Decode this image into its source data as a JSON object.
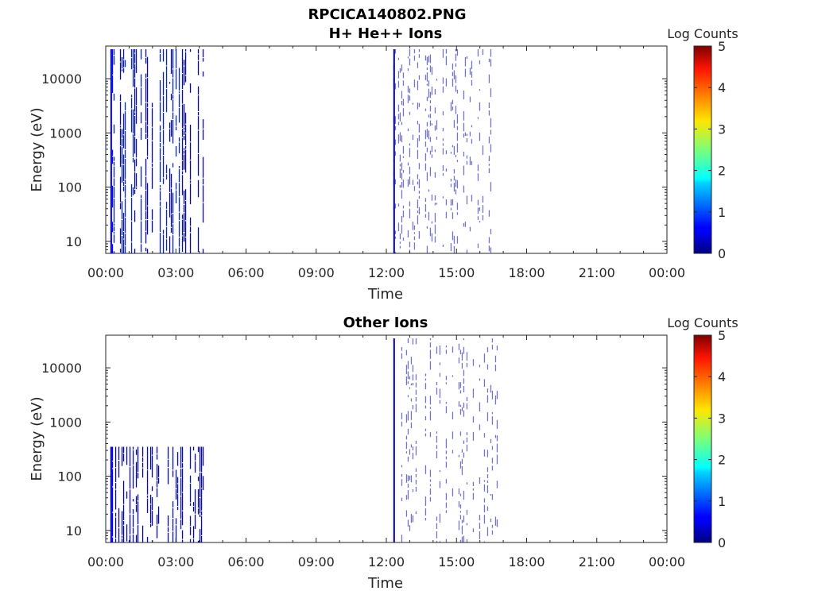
{
  "figure": {
    "title": "RPCICA140802.PNG"
  },
  "chart_data": [
    {
      "type": "heatmap",
      "id": "top",
      "title": "H+ He++ Ions",
      "xlabel": "Time",
      "ylabel": "Energy (eV)",
      "x_ticks": [
        "00:00",
        "03:00",
        "06:00",
        "09:00",
        "12:00",
        "15:00",
        "18:00",
        "21:00",
        "00:00"
      ],
      "xlim_hours": [
        0,
        24
      ],
      "y_scale": "log",
      "y_ticks": [
        10,
        100,
        1000,
        10000
      ],
      "y_tick_labels": [
        "10",
        "100",
        "1000",
        "10000"
      ],
      "ylim": [
        6,
        40000
      ],
      "colorbar": {
        "label": "Log Counts",
        "ticks": [
          "0",
          "1",
          "2",
          "3",
          "4",
          "5"
        ],
        "range": [
          0,
          5
        ],
        "colormap": "jet"
      },
      "data_segments": [
        {
          "start_hour": 0.2,
          "end_hour": 4.3,
          "log_counts": 0.6,
          "energy_max_ev": 35000,
          "energy_min_ev": 6,
          "description_level": "dense"
        },
        {
          "start_hour": 12.3,
          "end_hour": 16.8,
          "log_counts": 0.15,
          "energy_max_ev": 35000,
          "energy_min_ev": 6,
          "description_level": "sparse"
        }
      ]
    },
    {
      "type": "heatmap",
      "id": "bottom",
      "title": "Other Ions",
      "xlabel": "Time",
      "ylabel": "Energy (eV)",
      "x_ticks": [
        "00:00",
        "03:00",
        "06:00",
        "09:00",
        "12:00",
        "15:00",
        "18:00",
        "21:00",
        "00:00"
      ],
      "xlim_hours": [
        0,
        24
      ],
      "y_scale": "log",
      "y_ticks": [
        10,
        100,
        1000,
        10000
      ],
      "y_tick_labels": [
        "10",
        "100",
        "1000",
        "10000"
      ],
      "ylim": [
        6,
        40000
      ],
      "colorbar": {
        "label": "Log Counts",
        "ticks": [
          "0",
          "1",
          "2",
          "3",
          "4",
          "5"
        ],
        "range": [
          0,
          5
        ],
        "colormap": "jet"
      },
      "data_segments": [
        {
          "start_hour": 0.2,
          "end_hour": 4.3,
          "log_counts": 0.5,
          "energy_max_ev": 350,
          "energy_min_ev": 6,
          "description_level": "dense-low"
        },
        {
          "start_hour": 12.3,
          "end_hour": 16.8,
          "log_counts": 0.1,
          "energy_max_ev": 35000,
          "energy_min_ev": 6,
          "description_level": "sparse"
        }
      ]
    }
  ]
}
